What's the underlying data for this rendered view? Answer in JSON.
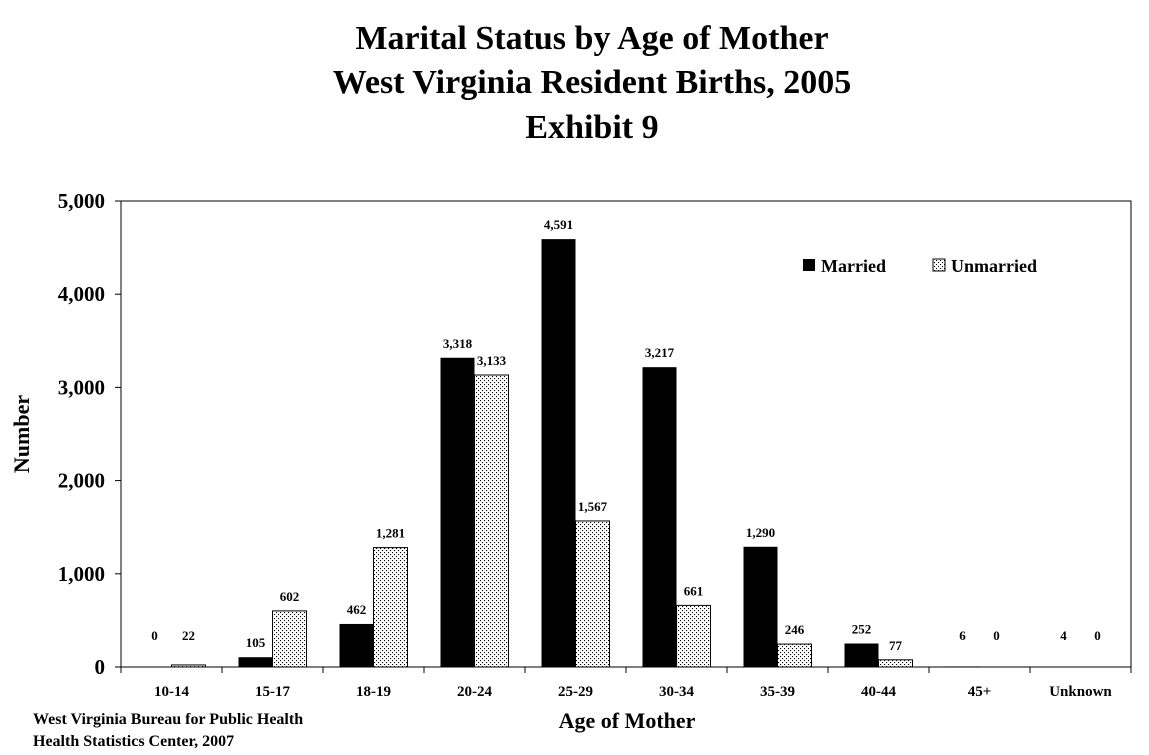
{
  "chart_data": {
    "type": "bar",
    "title": [
      "Marital Status by Age of Mother",
      "West Virginia Resident Births, 2005",
      "Exhibit 9"
    ],
    "xlabel": "Age of Mother",
    "ylabel": "Number",
    "ylim": [
      0,
      5000
    ],
    "yticks": [
      "0",
      "1,000",
      "2,000",
      "3,000",
      "4,000",
      "5,000"
    ],
    "ytick_values": [
      0,
      1000,
      2000,
      3000,
      4000,
      5000
    ],
    "categories": [
      "10-14",
      "15-17",
      "18-19",
      "20-24",
      "25-29",
      "30-34",
      "35-39",
      "40-44",
      "45+",
      "Unknown"
    ],
    "series": [
      {
        "name": "Married",
        "fill": "solid-black",
        "values": [
          0,
          105,
          462,
          3318,
          4591,
          3217,
          1290,
          252,
          6,
          4
        ],
        "labels": [
          "0",
          "105",
          "462",
          "3,318",
          "4,591",
          "3,217",
          "1,290",
          "252",
          "6",
          "4"
        ]
      },
      {
        "name": "Unmarried",
        "fill": "dotted",
        "values": [
          22,
          602,
          1281,
          3133,
          1567,
          661,
          246,
          77,
          0,
          0
        ],
        "labels": [
          "22",
          "602",
          "1,281",
          "3,133",
          "1,567",
          "661",
          "246",
          "77",
          "0",
          "0"
        ]
      }
    ],
    "legend_position": "top-right",
    "grid": false,
    "colors": {
      "married": "#000000",
      "unmarried_bg": "#ffffff",
      "unmarried_dot": "#000000"
    }
  },
  "source": [
    "West Virginia Bureau for Public Health",
    "Health Statistics Center, 2007"
  ]
}
